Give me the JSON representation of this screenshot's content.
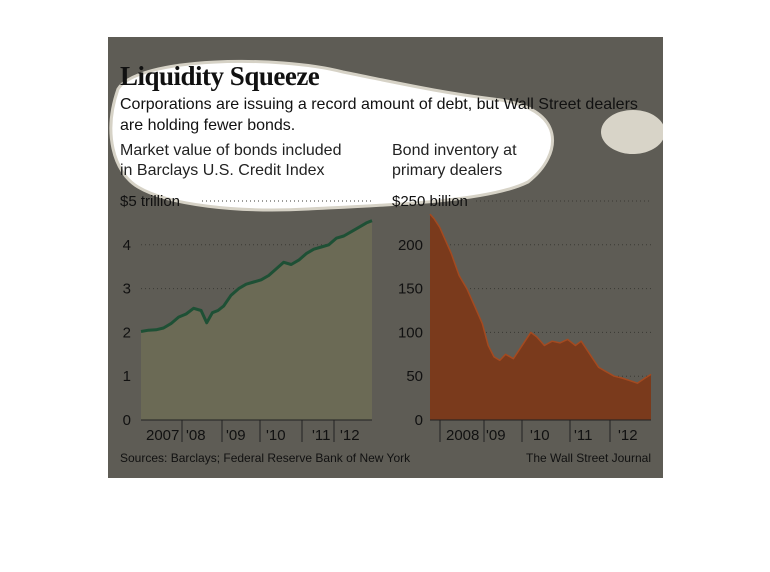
{
  "title": "Liquidity Squeeze",
  "subtitle": "Corporations are issuing a record amount of debt, but Wall Street dealers are holding fewer bonds.",
  "source": "Sources: Barclays; Federal Reserve Bank of New York",
  "credit": "The Wall Street Journal",
  "colors": {
    "panel": "#5e5c55",
    "left_fill": "#6b6a55",
    "left_line": "#1e5035",
    "right_fill": "#7a3a1c",
    "right_line": "#a44a20"
  },
  "chart_data": [
    {
      "type": "area",
      "caption": [
        "Market value of bonds included",
        "in Barclays U.S. Credit Index"
      ],
      "unit_label": "$5 trillion",
      "ylim": [
        0,
        5
      ],
      "yticks": [
        0,
        1,
        2,
        3,
        4
      ],
      "xlim": [
        2006.8,
        2012.95
      ],
      "xlabels": [
        "2007",
        "'08",
        "'09",
        "'10",
        "'11",
        "'12"
      ],
      "x": [
        2006.8,
        2007.0,
        2007.2,
        2007.4,
        2007.6,
        2007.8,
        2008.0,
        2008.2,
        2008.4,
        2008.55,
        2008.7,
        2008.85,
        2009.0,
        2009.2,
        2009.4,
        2009.6,
        2009.8,
        2010.0,
        2010.2,
        2010.4,
        2010.6,
        2010.8,
        2011.0,
        2011.2,
        2011.4,
        2011.6,
        2011.8,
        2012.0,
        2012.2,
        2012.4,
        2012.6,
        2012.8,
        2012.95
      ],
      "values": [
        2.02,
        2.05,
        2.06,
        2.1,
        2.2,
        2.35,
        2.42,
        2.55,
        2.5,
        2.22,
        2.45,
        2.5,
        2.6,
        2.85,
        3.0,
        3.1,
        3.15,
        3.2,
        3.3,
        3.45,
        3.6,
        3.55,
        3.65,
        3.8,
        3.9,
        3.95,
        4.0,
        4.15,
        4.2,
        4.3,
        4.4,
        4.5,
        4.55
      ]
    },
    {
      "type": "area",
      "caption": [
        "Bond inventory at",
        "primary dealers"
      ],
      "unit_label": "$250 billion",
      "ylim": [
        0,
        250
      ],
      "yticks": [
        0,
        50,
        100,
        150,
        200
      ],
      "xlim": [
        2007.25,
        2012.95
      ],
      "xlabels": [
        "2008",
        "'09",
        "'10",
        "'11",
        "'12"
      ],
      "x": [
        2007.25,
        2007.35,
        2007.5,
        2007.65,
        2007.8,
        2008.0,
        2008.2,
        2008.4,
        2008.6,
        2008.75,
        2008.9,
        2009.05,
        2009.2,
        2009.4,
        2009.55,
        2009.7,
        2009.85,
        2010.0,
        2010.2,
        2010.4,
        2010.6,
        2010.8,
        2011.0,
        2011.15,
        2011.3,
        2011.45,
        2011.6,
        2011.8,
        2012.0,
        2012.2,
        2012.4,
        2012.6,
        2012.8,
        2012.95
      ],
      "values": [
        235,
        230,
        220,
        205,
        190,
        165,
        150,
        130,
        110,
        85,
        72,
        68,
        75,
        70,
        80,
        90,
        100,
        95,
        85,
        90,
        88,
        92,
        85,
        90,
        80,
        70,
        60,
        55,
        50,
        48,
        45,
        42,
        48,
        52
      ]
    }
  ]
}
